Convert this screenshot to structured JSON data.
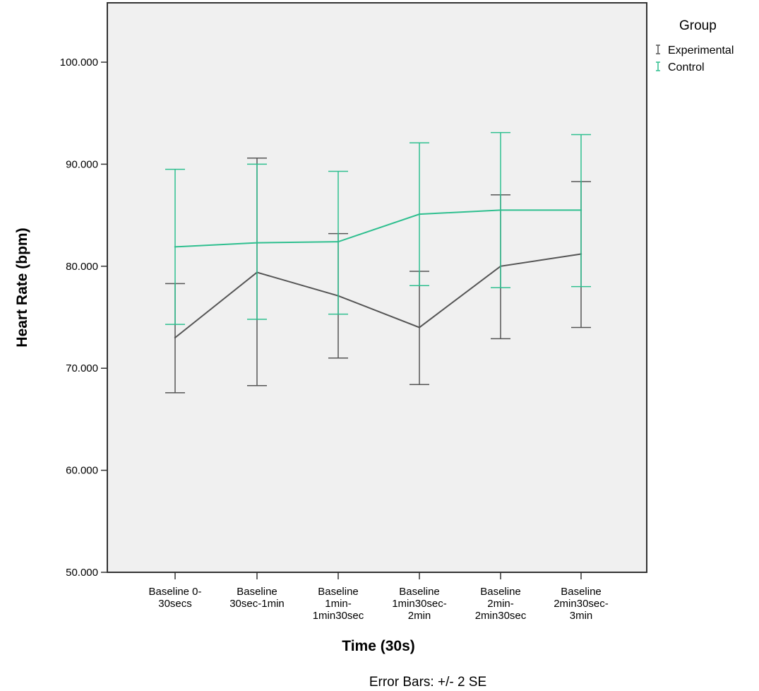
{
  "chart_data": {
    "type": "line",
    "xlabel": "Time (30s)",
    "ylabel": "Heart Rate (bpm)",
    "ylim": [
      50,
      105
    ],
    "yticks": [
      "50.000",
      "60.000",
      "70.000",
      "80.000",
      "90.000",
      "100.000"
    ],
    "ytick_values": [
      50,
      60,
      70,
      80,
      90,
      100
    ],
    "categories": [
      [
        "Baseline 0-",
        "30secs"
      ],
      [
        "Baseline",
        "30sec-1min"
      ],
      [
        "Baseline",
        "1min-",
        "1min30sec"
      ],
      [
        "Baseline",
        "1min30sec-",
        "2min"
      ],
      [
        "Baseline",
        "2min-",
        "2min30sec"
      ],
      [
        "Baseline",
        "2min30sec-",
        "3min"
      ]
    ],
    "grid": false,
    "legend": {
      "title": "Group",
      "position": "top-right"
    },
    "series": [
      {
        "name": "Experimental",
        "color": "#555555",
        "values": [
          73.0,
          79.4,
          77.1,
          74.0,
          80.0,
          81.2
        ],
        "lower": [
          67.6,
          68.3,
          71.0,
          68.4,
          72.9,
          74.0
        ],
        "upper": [
          78.3,
          90.6,
          83.2,
          79.5,
          87.0,
          88.3
        ]
      },
      {
        "name": "Control",
        "color": "#2fbf8f",
        "values": [
          81.9,
          82.3,
          82.4,
          85.1,
          85.5,
          85.5
        ],
        "lower": [
          74.3,
          74.8,
          75.3,
          78.1,
          77.9,
          78.0
        ],
        "upper": [
          89.5,
          90.0,
          89.3,
          92.1,
          93.1,
          92.9
        ]
      }
    ],
    "footnote": "Error Bars: +/- 2 SE"
  }
}
